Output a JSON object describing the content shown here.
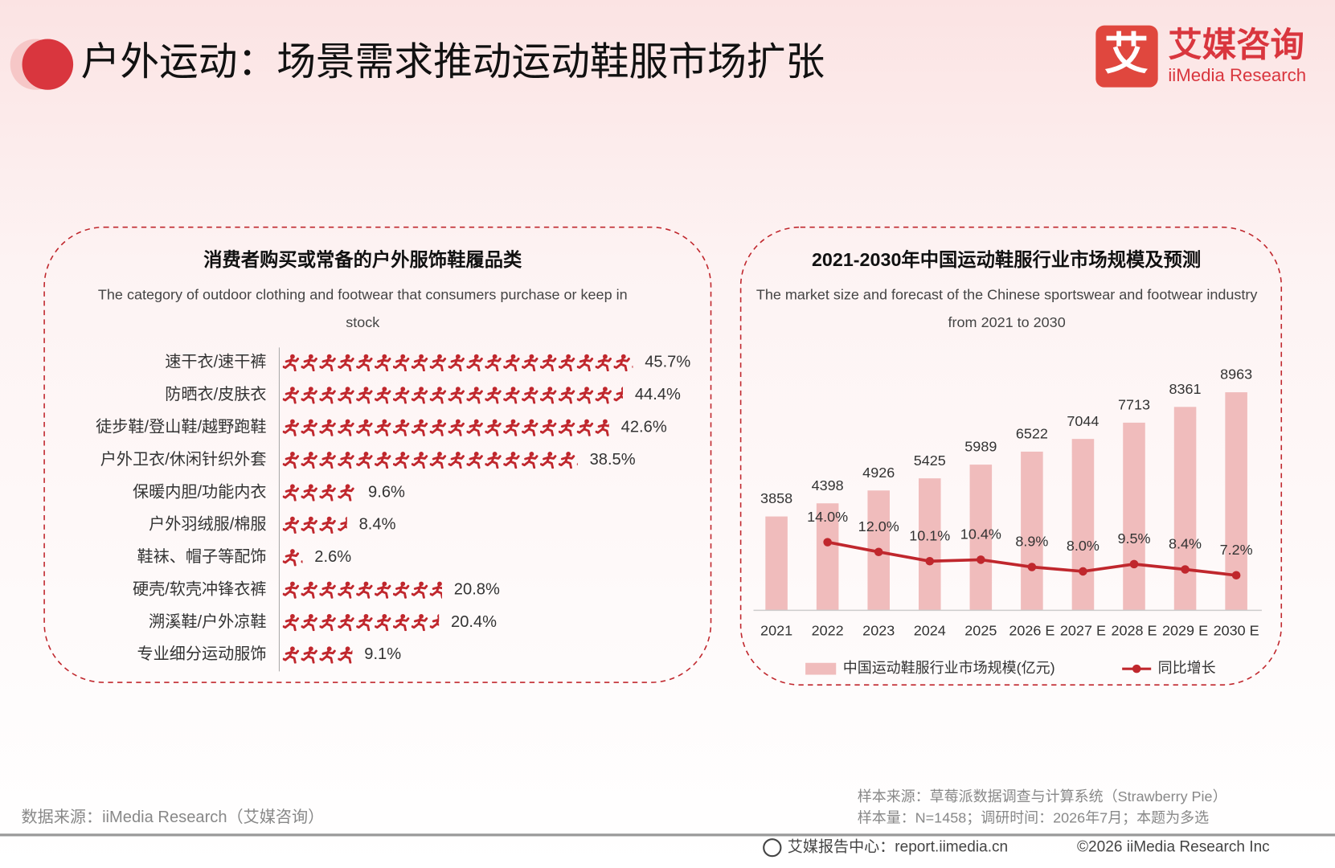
{
  "header": {
    "title": "户外运动：场景需求推动运动鞋服市场扩张",
    "logo_mark": "艾",
    "logo_cn": "艾媒咨询",
    "logo_en": "iiMedia Research"
  },
  "footer": {
    "source": "数据来源：iiMedia Research（艾媒咨询）",
    "sample_source": "样本来源：草莓派数据调查与计算系统（Strawberry Pie）",
    "sample_info": "样本量：N=1458；调研时间：2026年7月；本题为多选",
    "report_center": "艾媒报告中心：report.iimedia.cn",
    "copyright": "©2026  iiMedia Research  Inc"
  },
  "chart_data": [
    {
      "type": "pictograph",
      "title": "消费者购买或常备的户外服饰鞋履品类",
      "subtitle": "The category of outdoor clothing and footwear that consumers purchase or keep in stock",
      "categories": [
        "速干衣/速干裤",
        "防晒衣/皮肤衣",
        "徒步鞋/登山鞋/越野跑鞋",
        "户外卫衣/休闲针织外套",
        "保暖内胆/功能内衣",
        "户外羽绒服/棉服",
        "鞋袜、帽子等配饰",
        "硬壳/软壳冲锋衣裤",
        "溯溪鞋/户外凉鞋",
        "专业细分运动服饰"
      ],
      "values": [
        45.7,
        44.4,
        42.6,
        38.5,
        9.6,
        8.4,
        2.6,
        20.8,
        20.4,
        9.1
      ],
      "value_labels": [
        "45.7%",
        "44.4%",
        "42.6%",
        "38.5%",
        "9.6%",
        "8.4%",
        "2.6%",
        "20.8%",
        "20.4%",
        "9.1%"
      ],
      "color": "#c0272d",
      "xlim": [
        0,
        50
      ]
    },
    {
      "type": "bar",
      "title": "2021-2030年中国运动鞋服行业市场规模及预测",
      "subtitle": "The market size and forecast of the Chinese sportswear and footwear industry from 2021 to 2030",
      "categories": [
        "2021",
        "2022",
        "2023",
        "2024",
        "2025",
        "2026 E",
        "2027 E",
        "2028 E",
        "2029 E",
        "2030 E"
      ],
      "series": [
        {
          "name": "中国运动鞋服行业市场规模(亿元)",
          "color": "#f0bcbc",
          "values": [
            3858,
            4398,
            4926,
            5425,
            5989,
            6522,
            7044,
            7713,
            8361,
            8963
          ]
        },
        {
          "name": "同比增长",
          "color": "#c0272d",
          "type": "line",
          "axis": "y2",
          "values": [
            null,
            14.0,
            12.0,
            10.1,
            10.4,
            8.9,
            8.0,
            9.5,
            8.4,
            7.2
          ],
          "value_labels": [
            null,
            "14.0%",
            "12.0%",
            "10.1%",
            "10.4%",
            "8.9%",
            "8.0%",
            "9.5%",
            "8.4%",
            "7.2%"
          ]
        }
      ],
      "ylim": [
        0,
        10000
      ],
      "y2lim": [
        0,
        50
      ]
    }
  ]
}
